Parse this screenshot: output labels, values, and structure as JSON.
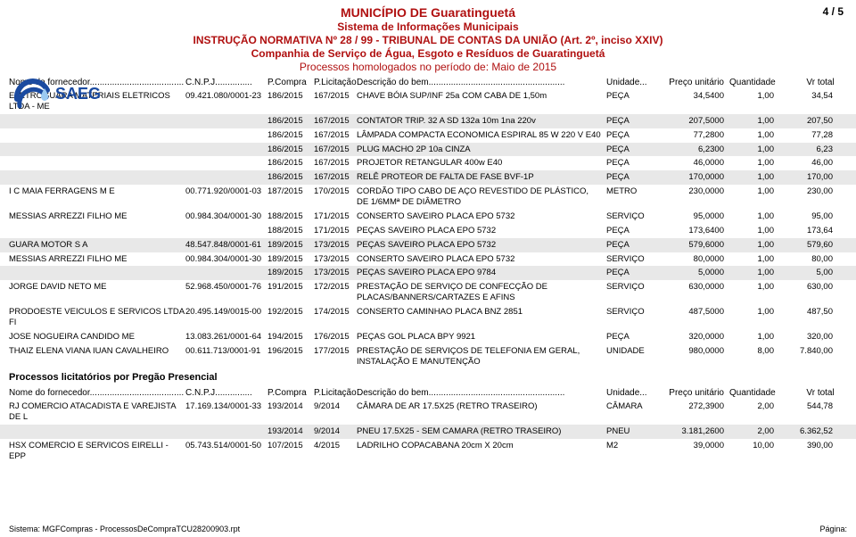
{
  "header": {
    "municipio": "MUNICÍPIO DE  Guaratinguetá",
    "sistema": "Sistema de Informações Municipais",
    "instrucao": "INSTRUÇÃO NORMATIVA Nº 28 / 99 - TRIBUNAL DE CONTAS DA UNIÃO (Art. 2º, inciso XXIV)",
    "companhia": "Companhia de Serviço de Água, Esgoto e Resíduos de Guaratinguetá",
    "periodo": "Processos homologados no período de: Maio de 2015",
    "page": "4 / 5",
    "logo_text": "SAEG",
    "logo_arc_color": "#1a4aa0",
    "logo_drop_color": "#9ccbf2"
  },
  "colunas": {
    "fornecedor": "Nome do fornecedor......................................",
    "cnpj": "C.N.P.J...............",
    "pcompra": "P.Compra",
    "plic": "P.Licitação",
    "descricao": "Descrição do bem.......................................................",
    "unidade": "Unidade...",
    "preco": "Preço unitário",
    "qty": "Quantidade",
    "total": "Vr total"
  },
  "rows": [
    {
      "s": 0,
      "f": "ELETROGUARA MATERIAIS ELETRICOS LTDA - ME",
      "c": "09.421.080/0001-23",
      "pc": "186/2015",
      "pl": "167/2015",
      "d": "CHAVE BÓIA SUP/INF 25a COM CABA DE 1,50m",
      "u": "PEÇA",
      "p": "34,5400",
      "q": "1,00",
      "t": "34,54"
    },
    {
      "s": 1,
      "f": "",
      "c": "",
      "pc": "186/2015",
      "pl": "167/2015",
      "d": "CONTATOR TRIP. 32 A SD 132a 10m 1na 220v",
      "u": "PEÇA",
      "p": "207,5000",
      "q": "1,00",
      "t": "207,50"
    },
    {
      "s": 0,
      "f": "",
      "c": "",
      "pc": "186/2015",
      "pl": "167/2015",
      "d": "LÂMPADA COMPACTA ECONOMICA ESPIRAL 85 W 220 V E40",
      "u": "PEÇA",
      "p": "77,2800",
      "q": "1,00",
      "t": "77,28"
    },
    {
      "s": 1,
      "f": "",
      "c": "",
      "pc": "186/2015",
      "pl": "167/2015",
      "d": "PLUG MACHO 2P 10a CINZA",
      "u": "PEÇA",
      "p": "6,2300",
      "q": "1,00",
      "t": "6,23"
    },
    {
      "s": 0,
      "f": "",
      "c": "",
      "pc": "186/2015",
      "pl": "167/2015",
      "d": "PROJETOR RETANGULAR 400w E40",
      "u": "PEÇA",
      "p": "46,0000",
      "q": "1,00",
      "t": "46,00"
    },
    {
      "s": 1,
      "f": "",
      "c": "",
      "pc": "186/2015",
      "pl": "167/2015",
      "d": "RELÊ PROTEOR DE FALTA DE FASE BVF-1P",
      "u": "PEÇA",
      "p": "170,0000",
      "q": "1,00",
      "t": "170,00"
    },
    {
      "s": 0,
      "f": "I C MAIA FERRAGENS M E",
      "c": "00.771.920/0001-03",
      "pc": "187/2015",
      "pl": "170/2015",
      "d": "CORDÃO TIPO CABO DE AÇO REVESTIDO DE PLÁSTICO, DE 1/6MMª DE DIÂMETRO",
      "u": "METRO",
      "p": "230,0000",
      "q": "1,00",
      "t": "230,00"
    },
    {
      "s": 0,
      "f": "MESSIAS ARREZZI FILHO ME",
      "c": "00.984.304/0001-30",
      "pc": "188/2015",
      "pl": "171/2015",
      "d": "CONSERTO SAVEIRO PLACA EPO 5732",
      "u": "SERVIÇO",
      "p": "95,0000",
      "q": "1,00",
      "t": "95,00"
    },
    {
      "s": 0,
      "f": "",
      "c": "",
      "pc": "188/2015",
      "pl": "171/2015",
      "d": "PEÇAS SAVEIRO PLACA EPO 5732",
      "u": "PEÇA",
      "p": "173,6400",
      "q": "1,00",
      "t": "173,64"
    },
    {
      "s": 1,
      "f": "GUARA MOTOR S A",
      "c": "48.547.848/0001-61",
      "pc": "189/2015",
      "pl": "173/2015",
      "d": "PEÇAS SAVEIRO PLACA EPO 5732",
      "u": "PEÇA",
      "p": "579,6000",
      "q": "1,00",
      "t": "579,60"
    },
    {
      "s": 0,
      "f": "MESSIAS ARREZZI FILHO ME",
      "c": "00.984.304/0001-30",
      "pc": "189/2015",
      "pl": "173/2015",
      "d": "CONSERTO SAVEIRO PLACA EPO 5732",
      "u": "SERVIÇO",
      "p": "80,0000",
      "q": "1,00",
      "t": "80,00"
    },
    {
      "s": 1,
      "f": "",
      "c": "",
      "pc": "189/2015",
      "pl": "173/2015",
      "d": "PEÇAS SAVEIRO PLACA EPO 9784",
      "u": "PEÇA",
      "p": "5,0000",
      "q": "1,00",
      "t": "5,00"
    },
    {
      "s": 0,
      "f": "JORGE DAVID NETO ME",
      "c": "52.968.450/0001-76",
      "pc": "191/2015",
      "pl": "172/2015",
      "d": "PRESTAÇÃO DE SERVIÇO DE CONFECÇÃO DE PLACAS/BANNERS/CARTAZES E AFINS",
      "u": "SERVIÇO",
      "p": "630,0000",
      "q": "1,00",
      "t": "630,00"
    },
    {
      "s": 0,
      "f": "PRODOESTE VEICULOS E SERVICOS LTDA FI",
      "c": "20.495.149/0015-00",
      "pc": "192/2015",
      "pl": "174/2015",
      "d": "CONSERTO CAMINHAO PLACA BNZ 2851",
      "u": "SERVIÇO",
      "p": "487,5000",
      "q": "1,00",
      "t": "487,50"
    },
    {
      "s": 0,
      "f": "JOSE NOGUEIRA CANDIDO ME",
      "c": "13.083.261/0001-64",
      "pc": "194/2015",
      "pl": "176/2015",
      "d": "PEÇAS GOL PLACA BPY 9921",
      "u": "PEÇA",
      "p": "320,0000",
      "q": "1,00",
      "t": "320,00"
    },
    {
      "s": 0,
      "f": "THAIZ ELENA VIANA IUAN CAVALHEIRO",
      "c": "00.611.713/0001-91",
      "pc": "196/2015",
      "pl": "177/2015",
      "d": "PRESTAÇÃO DE SERVIÇOS DE TELEFONIA EM GERAL, INSTALAÇÃO E MANUTENÇÃO",
      "u": "UNIDADE",
      "p": "980,0000",
      "q": "8,00",
      "t": "7.840,00"
    }
  ],
  "section2_label": "Processos licitatórios por Pregão Presencial",
  "rows2": [
    {
      "s": 0,
      "f": "RJ COMERCIO ATACADISTA E VAREJISTA DE L",
      "c": "17.169.134/0001-33",
      "pc": "193/2014",
      "pl": "9/2014",
      "d": "CÂMARA DE AR 17.5X25 (RETRO TRASEIRO)",
      "u": "CÂMARA",
      "p": "272,3900",
      "q": "2,00",
      "t": "544,78"
    },
    {
      "s": 1,
      "f": "",
      "c": "",
      "pc": "193/2014",
      "pl": "9/2014",
      "d": "PNEU 17.5X25 - SEM CAMARA (RETRO TRASEIRO)",
      "u": "PNEU",
      "p": "3.181,2600",
      "q": "2,00",
      "t": "6.362,52"
    },
    {
      "s": 0,
      "f": "HSX COMERCIO E SERVICOS EIRELLI - EPP",
      "c": "05.743.514/0001-50",
      "pc": "107/2015",
      "pl": "4/2015",
      "d": "LADRILHO COPACABANA 20cm X 20cm",
      "u": "M2",
      "p": "39,0000",
      "q": "10,00",
      "t": "390,00"
    }
  ],
  "footer": {
    "left": "Sistema: MGFCompras - ProcessosDeCompraTCU28200903.rpt",
    "right": "Página:"
  },
  "palette": {
    "header_red": "#b01010",
    "shade": "#e8e8e8",
    "logo_blue": "#1a4aa0"
  }
}
